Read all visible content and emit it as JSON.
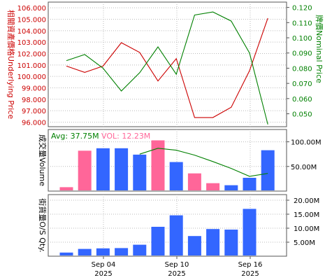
{
  "chart_data": [
    {
      "type": "line",
      "panel": "price",
      "ylabel_left": "相關資產價格Underlying Price",
      "ylabel_right": "牌價Nominal Price",
      "yticks_left": [
        "106.000",
        "105.000",
        "104.000",
        "103.000",
        "102.000",
        "101.000",
        "100.000",
        "99.000",
        "98.000",
        "97.000",
        "96.000"
      ],
      "yticks_right": [
        "0.120",
        "0.110",
        "0.100",
        "0.090",
        "0.080",
        "0.070",
        "0.060",
        "0.050"
      ],
      "ylim_left": [
        95.6,
        106.5
      ],
      "ylim_right": [
        0.0415,
        0.1235
      ],
      "grid": true,
      "colors": {
        "left": "#cc0000",
        "right": "#008000"
      },
      "series": [
        {
          "axis": "left",
          "values": [
            100.9,
            100.35,
            100.9,
            102.95,
            102.1,
            99.6,
            101.55,
            96.4,
            96.4,
            97.3,
            100.5,
            105.1
          ]
        },
        {
          "axis": "right",
          "values": [
            0.085,
            0.089,
            0.08,
            0.065,
            0.077,
            0.094,
            0.076,
            0.115,
            0.117,
            0.111,
            0.09,
            0.043
          ]
        }
      ]
    },
    {
      "type": "bar",
      "panel": "volume",
      "ylabel": "成交量Volume",
      "yticks": [
        "100.00M",
        "50.00M"
      ],
      "ylim": [
        0,
        125
      ],
      "avg_label": "Avg: 37.75M",
      "vol_label": "VOL: 12.23M",
      "values": [
        8,
        82,
        87,
        87,
        74,
        103,
        59,
        36,
        16,
        12,
        27,
        83
      ],
      "colors": [
        "pink",
        "pink",
        "blue",
        "blue",
        "blue",
        "pink",
        "blue",
        "pink",
        "pink",
        "blue",
        "blue",
        "blue"
      ],
      "avg_line": [
        null,
        null,
        null,
        null,
        75,
        87,
        83,
        73,
        60,
        46,
        30,
        36
      ],
      "palette": {
        "pink": "#ff6699",
        "blue": "#3366ff",
        "avg": "#008000"
      }
    },
    {
      "type": "bar",
      "panel": "os",
      "ylabel": "街貨量O/S Qty.",
      "yticks": [
        "20.00M",
        "15.00M",
        "10.00M",
        "5.00M"
      ],
      "ylim": [
        0,
        22
      ],
      "values": [
        1.3,
        2.6,
        2.8,
        2.9,
        4.1,
        10.5,
        14.6,
        7.2,
        9.7,
        9.5,
        16.9,
        0
      ],
      "color": "#3366ff",
      "xticks": [
        "Sep 04",
        "Sep 10",
        "Sep 16"
      ],
      "xticks_year": [
        "2025",
        "2025",
        "2025"
      ]
    }
  ]
}
